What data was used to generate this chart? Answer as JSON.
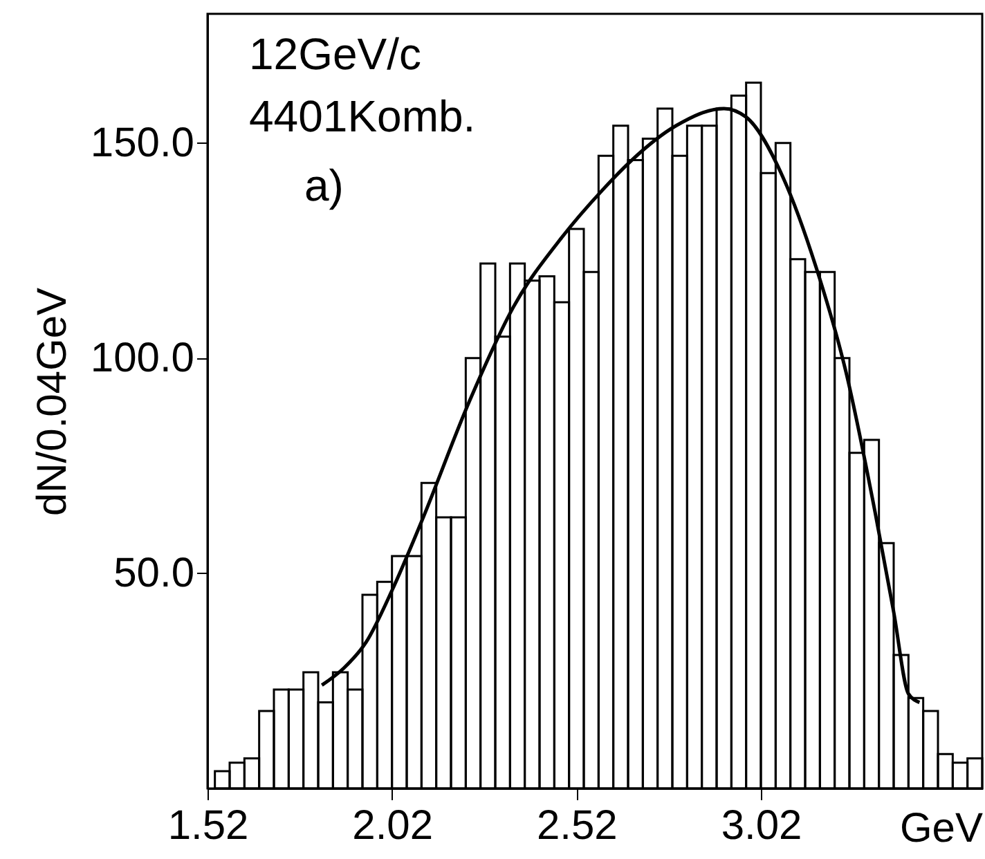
{
  "chart_data": {
    "type": "histogram",
    "ylabel": "dN/0.04GeV",
    "xlabel": "GeV",
    "annotations": [
      "12GeV/c",
      "4401Komb.",
      "a)"
    ],
    "bins": [
      1.54,
      1.58,
      1.62,
      1.66,
      1.7,
      1.74,
      1.78,
      1.82,
      1.86,
      1.9,
      1.94,
      1.98,
      2.02,
      2.06,
      2.1,
      2.14,
      2.18,
      2.22,
      2.26,
      2.3,
      2.34,
      2.38,
      2.42,
      2.46,
      2.5,
      2.54,
      2.58,
      2.62,
      2.66,
      2.7,
      2.74,
      2.78,
      2.82,
      2.86,
      2.9,
      2.94,
      2.98,
      3.02,
      3.06,
      3.1,
      3.14,
      3.18,
      3.22,
      3.26,
      3.3,
      3.34,
      3.38,
      3.42,
      3.46,
      3.5,
      3.54,
      3.58,
      3.62
    ],
    "values": [
      4,
      6,
      7,
      18,
      23,
      23,
      27,
      20,
      27,
      23,
      45,
      48,
      54,
      54,
      71,
      63,
      63,
      100,
      122,
      105,
      122,
      118,
      119,
      113,
      130,
      120,
      147,
      154,
      146,
      151,
      158,
      147,
      154,
      154,
      158,
      161,
      164,
      143,
      150,
      123,
      120,
      120,
      100,
      78,
      81,
      57,
      31,
      21,
      18,
      8,
      6,
      7
    ],
    "color": "#000000",
    "series": [
      {
        "type": "line",
        "color": "#000000",
        "x": [
          1.83,
          1.89,
          1.95,
          2.02,
          2.1,
          2.23,
          2.35,
          2.48,
          2.59,
          2.67,
          2.79,
          2.92,
          2.98,
          3.08,
          3.17,
          3.25,
          3.33,
          3.38,
          3.42,
          3.45
        ],
        "values": [
          24,
          28,
          34,
          46,
          62,
          90,
          112,
          128,
          139,
          146,
          154,
          158,
          156,
          142,
          121,
          97,
          64,
          41,
          22,
          20
        ]
      }
    ],
    "xlim": [
      1.52,
      3.62
    ],
    "xticks": [
      1.52,
      2.02,
      2.52,
      3.02
    ],
    "ylim": [
      0,
      180
    ],
    "yticks": [
      {
        "value": 50,
        "label": "50.0"
      },
      {
        "value": 100,
        "label": "100.0"
      },
      {
        "value": 150,
        "label": "150.0"
      }
    ],
    "grid": false
  }
}
